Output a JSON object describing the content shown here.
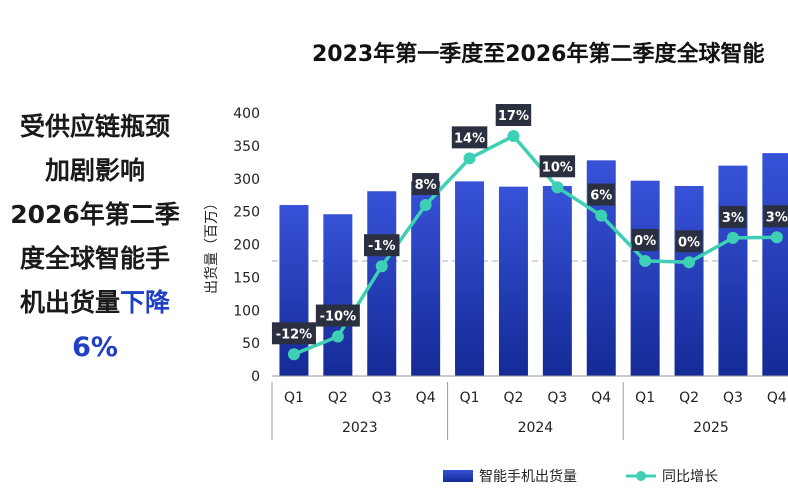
{
  "title": "2023年第一季度至2026年第二季度全球智能",
  "side_text": {
    "line1": "受供应链瓶颈",
    "line2": "加剧影响",
    "line3": "2026年第二季",
    "line4": "度全球智能手",
    "line5_main": "机出货量",
    "line5_highlight": "下降",
    "line6": "6%"
  },
  "chart_data": {
    "type": "bar",
    "categories": [
      "Q1",
      "Q2",
      "Q3",
      "Q4",
      "Q1",
      "Q2",
      "Q3",
      "Q4",
      "Q1",
      "Q2",
      "Q3",
      "Q4"
    ],
    "years": [
      {
        "label": "2023",
        "from": 0,
        "to": 3
      },
      {
        "label": "2024",
        "from": 4,
        "to": 7
      },
      {
        "label": "2025",
        "from": 8,
        "to": 11
      }
    ],
    "ylabel": "出货量（百万）",
    "ylim": [
      0,
      400
    ],
    "yticks": [
      0,
      50,
      100,
      150,
      200,
      250,
      300,
      350,
      400
    ],
    "reference_line": 175,
    "series": [
      {
        "name": "智能手机出货量",
        "type": "bar",
        "values": [
          260,
          246,
          281,
          296,
          296,
          288,
          289,
          328,
          297,
          289,
          320,
          339
        ]
      },
      {
        "name": "同比增长",
        "type": "line",
        "values": [
          -12,
          -10,
          -1,
          8,
          14,
          17,
          10,
          6,
          0,
          0,
          3,
          3
        ],
        "labels": [
          "-12%",
          "-10%",
          "-1%",
          "8%",
          "14%",
          "17%",
          "10%",
          "6%",
          "0%",
          "0%",
          "3%",
          "3%"
        ],
        "plot_positions": [
          33,
          60,
          167,
          260,
          331,
          365,
          287,
          244,
          175,
          173,
          210,
          211
        ]
      }
    ],
    "colors": {
      "bar_top": "#3752d8",
      "bar_bottom": "#142a96",
      "line": "#3ed0b5",
      "label_bg": "#2b3040"
    },
    "legend_position": "bottom"
  }
}
